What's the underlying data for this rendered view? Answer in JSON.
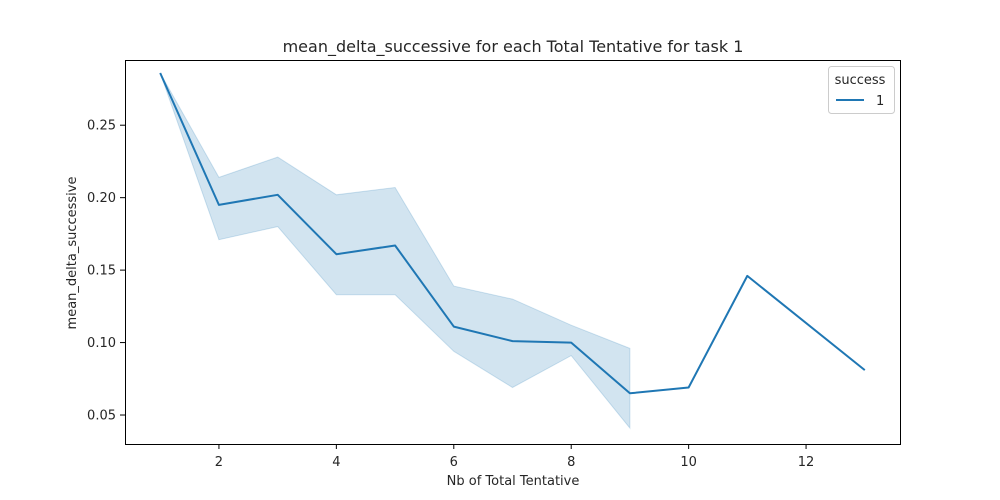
{
  "chart_data": {
    "type": "line",
    "title": "mean_delta_successive for each Total Tentative for task 1",
    "xlabel": "Nb of Total Tentative",
    "ylabel": "mean_delta_successive",
    "xlim": [
      0.4,
      13.6
    ],
    "ylim": [
      0.03,
      0.295
    ],
    "xticks": [
      2,
      4,
      6,
      8,
      10,
      12
    ],
    "yticks": [
      0.05,
      0.1,
      0.15,
      0.2,
      0.25
    ],
    "ytick_labels": [
      "0.05",
      "0.10",
      "0.15",
      "0.20",
      "0.25"
    ],
    "grid": false,
    "legend": {
      "title": "success",
      "placement": "top-right",
      "entries": [
        "1"
      ]
    },
    "series": [
      {
        "name": "1",
        "color": "#1f77b4",
        "x": [
          1,
          2,
          3,
          4,
          5,
          6,
          7,
          8,
          9,
          10,
          11,
          13
        ],
        "y": [
          0.286,
          0.195,
          0.202,
          0.161,
          0.167,
          0.111,
          0.101,
          0.1,
          0.065,
          0.069,
          0.146,
          0.081
        ]
      }
    ],
    "confidence_band": {
      "color": "#1f77b4",
      "opacity": 0.2,
      "x": [
        1,
        2,
        3,
        4,
        5,
        6,
        7,
        8,
        9
      ],
      "lower": [
        0.286,
        0.171,
        0.18,
        0.133,
        0.133,
        0.094,
        0.069,
        0.091,
        0.041
      ],
      "upper": [
        0.286,
        0.214,
        0.228,
        0.202,
        0.207,
        0.139,
        0.13,
        0.112,
        0.096
      ]
    }
  }
}
